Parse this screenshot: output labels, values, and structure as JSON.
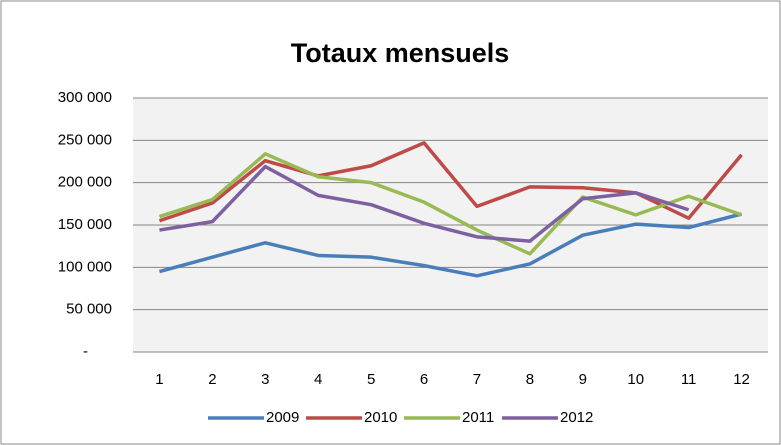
{
  "chart_data": {
    "type": "line",
    "title": "Totaux mensuels",
    "categories": [
      "1",
      "2",
      "3",
      "4",
      "5",
      "6",
      "7",
      "8",
      "9",
      "10",
      "11",
      "12"
    ],
    "series": [
      {
        "name": "2009",
        "color": "#4a7ebb",
        "values": [
          95000,
          112000,
          129000,
          114000,
          112000,
          102000,
          90000,
          104000,
          138000,
          151000,
          147000,
          163000
        ]
      },
      {
        "name": "2010",
        "color": "#be4b48",
        "values": [
          155000,
          176000,
          226000,
          208000,
          220000,
          247000,
          172000,
          195000,
          194000,
          188000,
          158000,
          233000
        ]
      },
      {
        "name": "2011",
        "color": "#98b954",
        "values": [
          160000,
          180000,
          234000,
          207000,
          200000,
          177000,
          144000,
          116000,
          183000,
          162000,
          184000,
          162000
        ]
      },
      {
        "name": "2012",
        "color": "#7d60a0",
        "values": [
          144000,
          154000,
          219000,
          185000,
          174000,
          152000,
          136000,
          131000,
          181000,
          188000,
          168000,
          null
        ]
      }
    ],
    "ylim": [
      0,
      300000
    ],
    "yticks": [
      {
        "value": 0,
        "label": "-"
      },
      {
        "value": 50000,
        "label": "50 000"
      },
      {
        "value": 100000,
        "label": "100 000"
      },
      {
        "value": 150000,
        "label": "150 000"
      },
      {
        "value": 200000,
        "label": "200 000"
      },
      {
        "value": 250000,
        "label": "250 000"
      },
      {
        "value": 300000,
        "label": "300 000"
      }
    ],
    "grid": true,
    "legend": "bottom"
  }
}
